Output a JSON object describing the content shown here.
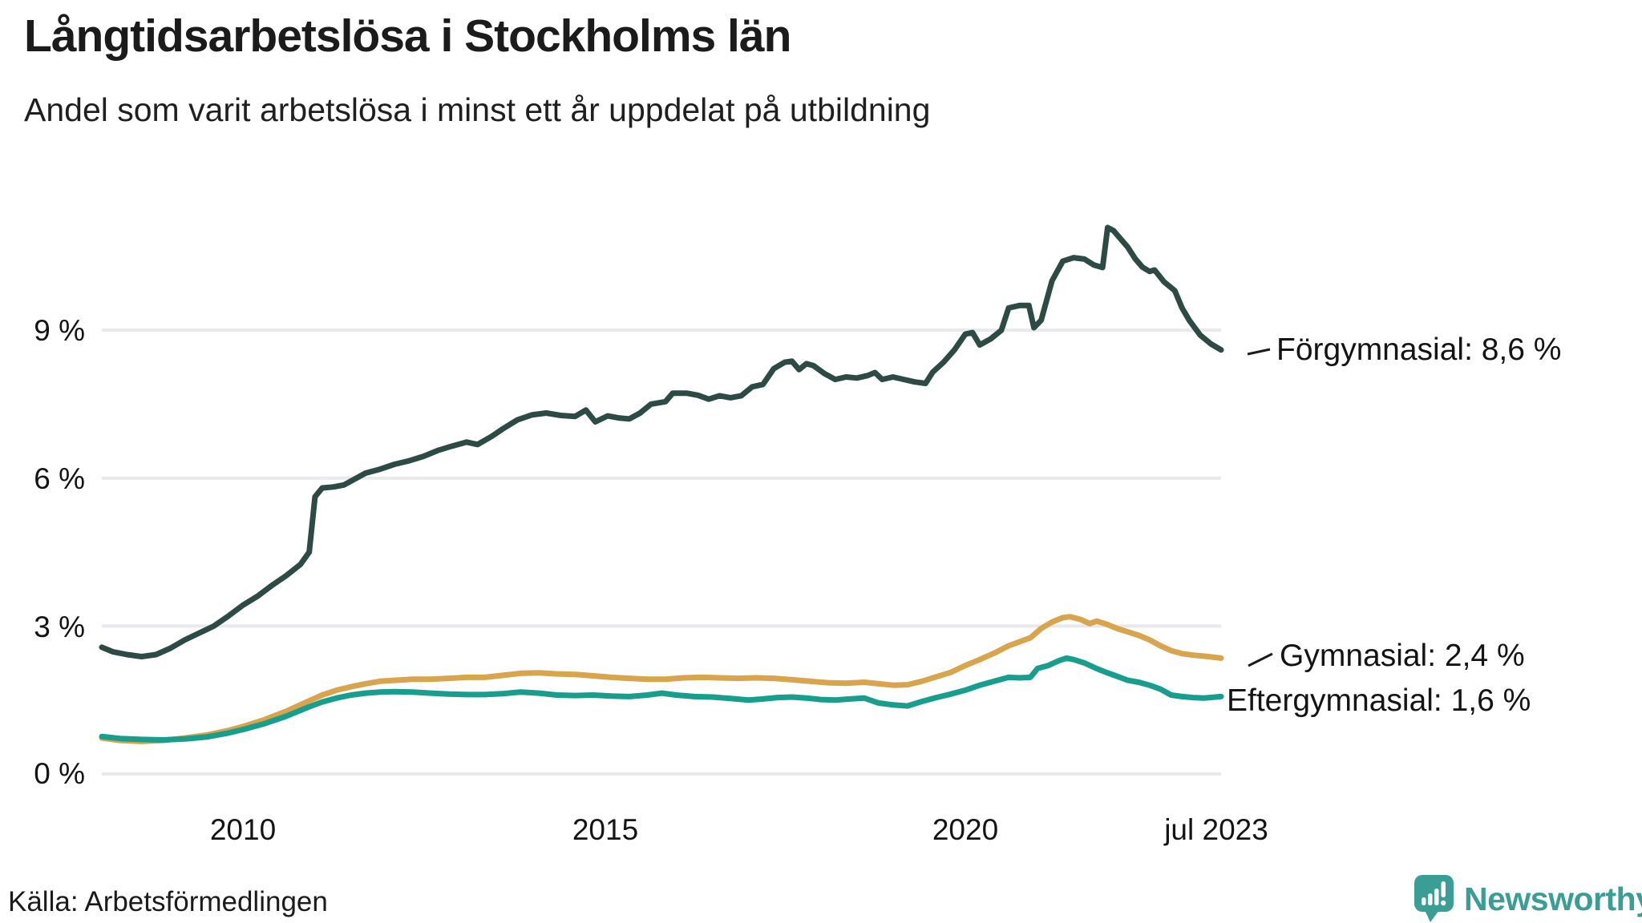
{
  "header": {
    "title": "Långtidsarbetslösa i Stockholms län",
    "subtitle": "Andel som varit arbetslösa i minst ett år uppdelat på utbildning"
  },
  "footer": {
    "source": "Källa: Arbetsförmedlingen",
    "brand": "Newsworthy",
    "brand_color": "#3a9e95"
  },
  "colors": {
    "gridline": "#e9e9ec",
    "text": "#1b1b1b",
    "forgymnasial": "#2d4b44",
    "gymnasial": "#d8a44d",
    "eftergymnasial": "#199d8d"
  },
  "chart_data": {
    "type": "line",
    "title": "Långtidsarbetslösa i Stockholms län",
    "subtitle": "Andel som varit arbetslösa i minst ett år uppdelat på utbildning",
    "unit": "%",
    "grid": "horizontal",
    "legend_position": "right-end-labels",
    "x_axis": {
      "range": [
        2008.05,
        2023.54
      ],
      "ticks": [
        {
          "label": "2010",
          "value": 2010
        },
        {
          "label": "2015",
          "value": 2015
        },
        {
          "label": "2020",
          "value": 2020
        },
        {
          "label": "jul 2023",
          "value": 2023.54
        }
      ]
    },
    "y_axis": {
      "range": [
        0,
        11.6
      ],
      "ticks": [
        {
          "label": "9 %",
          "value": 9
        },
        {
          "label": "6 %",
          "value": 6
        },
        {
          "label": "3 %",
          "value": 3
        },
        {
          "label": "0 %",
          "value": 0
        }
      ]
    },
    "series": [
      {
        "name": "Förgymnasial",
        "end_label": "Förgymnasial: 8,6 %",
        "last_value": 8.6,
        "color": "#2d4b44",
        "points": [
          [
            2008.05,
            2.57
          ],
          [
            2008.2,
            2.48
          ],
          [
            2008.4,
            2.42
          ],
          [
            2008.6,
            2.38
          ],
          [
            2008.8,
            2.42
          ],
          [
            2009.0,
            2.55
          ],
          [
            2009.2,
            2.72
          ],
          [
            2009.4,
            2.86
          ],
          [
            2009.6,
            3.0
          ],
          [
            2009.8,
            3.2
          ],
          [
            2010.0,
            3.42
          ],
          [
            2010.2,
            3.6
          ],
          [
            2010.4,
            3.82
          ],
          [
            2010.6,
            4.02
          ],
          [
            2010.8,
            4.25
          ],
          [
            2010.92,
            4.5
          ],
          [
            2011.0,
            5.62
          ],
          [
            2011.1,
            5.8
          ],
          [
            2011.25,
            5.82
          ],
          [
            2011.4,
            5.86
          ],
          [
            2011.55,
            5.98
          ],
          [
            2011.7,
            6.1
          ],
          [
            2011.9,
            6.18
          ],
          [
            2012.1,
            6.28
          ],
          [
            2012.3,
            6.35
          ],
          [
            2012.5,
            6.44
          ],
          [
            2012.7,
            6.56
          ],
          [
            2012.9,
            6.65
          ],
          [
            2013.1,
            6.73
          ],
          [
            2013.25,
            6.68
          ],
          [
            2013.45,
            6.85
          ],
          [
            2013.6,
            7.0
          ],
          [
            2013.8,
            7.18
          ],
          [
            2014.0,
            7.28
          ],
          [
            2014.2,
            7.32
          ],
          [
            2014.4,
            7.27
          ],
          [
            2014.6,
            7.25
          ],
          [
            2014.75,
            7.38
          ],
          [
            2014.88,
            7.14
          ],
          [
            2015.05,
            7.26
          ],
          [
            2015.2,
            7.22
          ],
          [
            2015.35,
            7.2
          ],
          [
            2015.5,
            7.32
          ],
          [
            2015.65,
            7.5
          ],
          [
            2015.85,
            7.55
          ],
          [
            2015.95,
            7.72
          ],
          [
            2016.15,
            7.72
          ],
          [
            2016.3,
            7.68
          ],
          [
            2016.45,
            7.6
          ],
          [
            2016.6,
            7.67
          ],
          [
            2016.75,
            7.63
          ],
          [
            2016.9,
            7.67
          ],
          [
            2017.05,
            7.85
          ],
          [
            2017.2,
            7.9
          ],
          [
            2017.35,
            8.22
          ],
          [
            2017.5,
            8.35
          ],
          [
            2017.6,
            8.37
          ],
          [
            2017.7,
            8.2
          ],
          [
            2017.8,
            8.32
          ],
          [
            2017.9,
            8.28
          ],
          [
            2018.05,
            8.12
          ],
          [
            2018.2,
            8.0
          ],
          [
            2018.35,
            8.05
          ],
          [
            2018.5,
            8.03
          ],
          [
            2018.65,
            8.08
          ],
          [
            2018.75,
            8.14
          ],
          [
            2018.85,
            8.0
          ],
          [
            2019.0,
            8.05
          ],
          [
            2019.15,
            8.0
          ],
          [
            2019.3,
            7.95
          ],
          [
            2019.45,
            7.92
          ],
          [
            2019.55,
            8.15
          ],
          [
            2019.7,
            8.35
          ],
          [
            2019.85,
            8.6
          ],
          [
            2020.0,
            8.92
          ],
          [
            2020.1,
            8.95
          ],
          [
            2020.2,
            8.7
          ],
          [
            2020.35,
            8.82
          ],
          [
            2020.5,
            9.0
          ],
          [
            2020.6,
            9.45
          ],
          [
            2020.75,
            9.5
          ],
          [
            2020.88,
            9.5
          ],
          [
            2020.95,
            9.05
          ],
          [
            2021.05,
            9.2
          ],
          [
            2021.2,
            10.0
          ],
          [
            2021.35,
            10.4
          ],
          [
            2021.5,
            10.47
          ],
          [
            2021.65,
            10.44
          ],
          [
            2021.78,
            10.32
          ],
          [
            2021.9,
            10.27
          ],
          [
            2021.97,
            11.08
          ],
          [
            2022.05,
            11.02
          ],
          [
            2022.15,
            10.85
          ],
          [
            2022.25,
            10.68
          ],
          [
            2022.35,
            10.45
          ],
          [
            2022.45,
            10.28
          ],
          [
            2022.55,
            10.19
          ],
          [
            2022.62,
            10.22
          ],
          [
            2022.75,
            9.98
          ],
          [
            2022.9,
            9.8
          ],
          [
            2023.0,
            9.45
          ],
          [
            2023.1,
            9.2
          ],
          [
            2023.25,
            8.9
          ],
          [
            2023.4,
            8.72
          ],
          [
            2023.54,
            8.6
          ]
        ]
      },
      {
        "name": "Gymnasial",
        "end_label": "Gymnasial: 2,4 %",
        "last_value": 2.4,
        "color": "#d8a44d",
        "points": [
          [
            2008.05,
            0.73
          ],
          [
            2008.3,
            0.68
          ],
          [
            2008.6,
            0.66
          ],
          [
            2008.9,
            0.68
          ],
          [
            2009.2,
            0.73
          ],
          [
            2009.5,
            0.79
          ],
          [
            2009.8,
            0.88
          ],
          [
            2010.0,
            0.96
          ],
          [
            2010.3,
            1.1
          ],
          [
            2010.6,
            1.27
          ],
          [
            2010.9,
            1.47
          ],
          [
            2011.1,
            1.6
          ],
          [
            2011.3,
            1.7
          ],
          [
            2011.5,
            1.77
          ],
          [
            2011.7,
            1.83
          ],
          [
            2011.9,
            1.88
          ],
          [
            2012.1,
            1.9
          ],
          [
            2012.35,
            1.92
          ],
          [
            2012.6,
            1.92
          ],
          [
            2012.85,
            1.94
          ],
          [
            2013.1,
            1.96
          ],
          [
            2013.35,
            1.96
          ],
          [
            2013.6,
            2.0
          ],
          [
            2013.85,
            2.04
          ],
          [
            2014.1,
            2.05
          ],
          [
            2014.35,
            2.03
          ],
          [
            2014.6,
            2.02
          ],
          [
            2014.85,
            1.99
          ],
          [
            2015.1,
            1.96
          ],
          [
            2015.35,
            1.94
          ],
          [
            2015.6,
            1.92
          ],
          [
            2015.85,
            1.92
          ],
          [
            2016.1,
            1.95
          ],
          [
            2016.35,
            1.96
          ],
          [
            2016.6,
            1.95
          ],
          [
            2016.85,
            1.94
          ],
          [
            2017.1,
            1.95
          ],
          [
            2017.35,
            1.94
          ],
          [
            2017.6,
            1.91
          ],
          [
            2017.85,
            1.88
          ],
          [
            2018.1,
            1.85
          ],
          [
            2018.35,
            1.84
          ],
          [
            2018.6,
            1.86
          ],
          [
            2018.8,
            1.83
          ],
          [
            2019.0,
            1.8
          ],
          [
            2019.2,
            1.81
          ],
          [
            2019.4,
            1.88
          ],
          [
            2019.6,
            1.97
          ],
          [
            2019.8,
            2.06
          ],
          [
            2020.0,
            2.2
          ],
          [
            2020.2,
            2.32
          ],
          [
            2020.4,
            2.45
          ],
          [
            2020.6,
            2.6
          ],
          [
            2020.75,
            2.68
          ],
          [
            2020.9,
            2.76
          ],
          [
            2021.05,
            2.95
          ],
          [
            2021.2,
            3.08
          ],
          [
            2021.35,
            3.17
          ],
          [
            2021.45,
            3.19
          ],
          [
            2021.6,
            3.13
          ],
          [
            2021.72,
            3.05
          ],
          [
            2021.82,
            3.1
          ],
          [
            2021.95,
            3.04
          ],
          [
            2022.1,
            2.95
          ],
          [
            2022.25,
            2.88
          ],
          [
            2022.4,
            2.81
          ],
          [
            2022.55,
            2.72
          ],
          [
            2022.7,
            2.6
          ],
          [
            2022.85,
            2.5
          ],
          [
            2023.0,
            2.44
          ],
          [
            2023.15,
            2.41
          ],
          [
            2023.3,
            2.39
          ],
          [
            2023.54,
            2.35
          ]
        ]
      },
      {
        "name": "Eftergymnasial",
        "end_label": "Eftergymnasial: 1,6 %",
        "last_value": 1.6,
        "color": "#199d8d",
        "points": [
          [
            2008.05,
            0.76
          ],
          [
            2008.3,
            0.72
          ],
          [
            2008.6,
            0.7
          ],
          [
            2008.9,
            0.69
          ],
          [
            2009.2,
            0.71
          ],
          [
            2009.5,
            0.75
          ],
          [
            2009.8,
            0.83
          ],
          [
            2010.0,
            0.9
          ],
          [
            2010.3,
            1.02
          ],
          [
            2010.6,
            1.17
          ],
          [
            2010.9,
            1.35
          ],
          [
            2011.1,
            1.46
          ],
          [
            2011.3,
            1.54
          ],
          [
            2011.5,
            1.6
          ],
          [
            2011.7,
            1.64
          ],
          [
            2011.9,
            1.66
          ],
          [
            2012.1,
            1.67
          ],
          [
            2012.35,
            1.66
          ],
          [
            2012.6,
            1.64
          ],
          [
            2012.85,
            1.62
          ],
          [
            2013.1,
            1.61
          ],
          [
            2013.35,
            1.61
          ],
          [
            2013.6,
            1.63
          ],
          [
            2013.85,
            1.66
          ],
          [
            2014.1,
            1.64
          ],
          [
            2014.35,
            1.6
          ],
          [
            2014.6,
            1.59
          ],
          [
            2014.85,
            1.6
          ],
          [
            2015.1,
            1.58
          ],
          [
            2015.35,
            1.57
          ],
          [
            2015.6,
            1.6
          ],
          [
            2015.8,
            1.64
          ],
          [
            2016.0,
            1.6
          ],
          [
            2016.25,
            1.57
          ],
          [
            2016.5,
            1.56
          ],
          [
            2016.75,
            1.53
          ],
          [
            2017.0,
            1.5
          ],
          [
            2017.2,
            1.52
          ],
          [
            2017.4,
            1.55
          ],
          [
            2017.6,
            1.56
          ],
          [
            2017.8,
            1.54
          ],
          [
            2018.0,
            1.51
          ],
          [
            2018.2,
            1.5
          ],
          [
            2018.4,
            1.52
          ],
          [
            2018.6,
            1.54
          ],
          [
            2018.8,
            1.44
          ],
          [
            2019.0,
            1.4
          ],
          [
            2019.2,
            1.38
          ],
          [
            2019.4,
            1.47
          ],
          [
            2019.6,
            1.55
          ],
          [
            2019.8,
            1.62
          ],
          [
            2020.0,
            1.7
          ],
          [
            2020.2,
            1.8
          ],
          [
            2020.4,
            1.88
          ],
          [
            2020.6,
            1.96
          ],
          [
            2020.75,
            1.95
          ],
          [
            2020.9,
            1.96
          ],
          [
            2021.0,
            2.14
          ],
          [
            2021.15,
            2.2
          ],
          [
            2021.3,
            2.3
          ],
          [
            2021.4,
            2.35
          ],
          [
            2021.5,
            2.32
          ],
          [
            2021.65,
            2.25
          ],
          [
            2021.8,
            2.15
          ],
          [
            2021.95,
            2.06
          ],
          [
            2022.1,
            1.98
          ],
          [
            2022.25,
            1.9
          ],
          [
            2022.4,
            1.86
          ],
          [
            2022.55,
            1.8
          ],
          [
            2022.7,
            1.72
          ],
          [
            2022.85,
            1.6
          ],
          [
            2023.0,
            1.57
          ],
          [
            2023.15,
            1.55
          ],
          [
            2023.3,
            1.54
          ],
          [
            2023.54,
            1.57
          ]
        ]
      }
    ]
  }
}
